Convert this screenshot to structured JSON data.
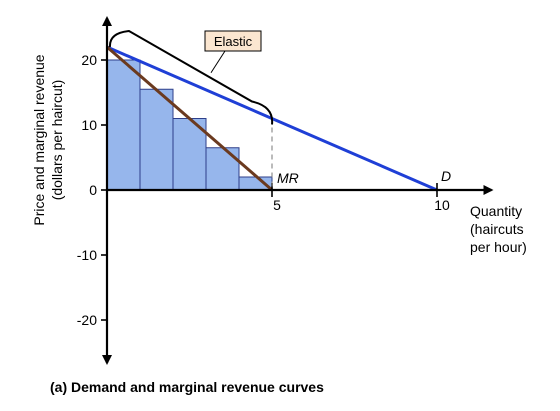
{
  "chart_data": {
    "type": "bar",
    "caption": "(a) Demand and marginal revenue curves",
    "ylabel_lines": [
      "Price and marginal revenue",
      "(dollars per haircut)"
    ],
    "xlabel_lines": [
      "Quantity",
      "(haircuts",
      "per hour)"
    ],
    "xlim": [
      0,
      11.5
    ],
    "ylim": [
      -26,
      26
    ],
    "x_ticks": [
      {
        "value": 5,
        "label": "5"
      },
      {
        "value": 10,
        "label": "10"
      }
    ],
    "y_ticks": [
      {
        "value": 20,
        "label": "20"
      },
      {
        "value": 10,
        "label": "10"
      },
      {
        "value": 0,
        "label": "0"
      },
      {
        "value": -10,
        "label": "-10"
      },
      {
        "value": -20,
        "label": "-20"
      }
    ],
    "bars": [
      {
        "x_start": 0,
        "x_end": 1,
        "value": 20
      },
      {
        "x_start": 1,
        "x_end": 2,
        "value": 15.5
      },
      {
        "x_start": 2,
        "x_end": 3,
        "value": 11
      },
      {
        "x_start": 3,
        "x_end": 4,
        "value": 6.5
      },
      {
        "x_start": 4,
        "x_end": 5,
        "value": 2
      }
    ],
    "series": [
      {
        "name": "D",
        "x": [
          0,
          10
        ],
        "y": [
          22,
          0
        ],
        "color": "#1f3fd6"
      },
      {
        "name": "MR",
        "x": [
          0,
          5
        ],
        "y": [
          22,
          0
        ],
        "color": "#6b3a1f"
      }
    ],
    "annotations": {
      "elastic_label": "Elastic",
      "elastic_range": [
        0,
        5
      ],
      "dashed_guide_x": 5
    },
    "colors": {
      "bar_fill": "#96b6ec",
      "bar_stroke": "#2e3f8a",
      "callout_fill": "#fbe6d0",
      "guide": "#777777"
    }
  }
}
